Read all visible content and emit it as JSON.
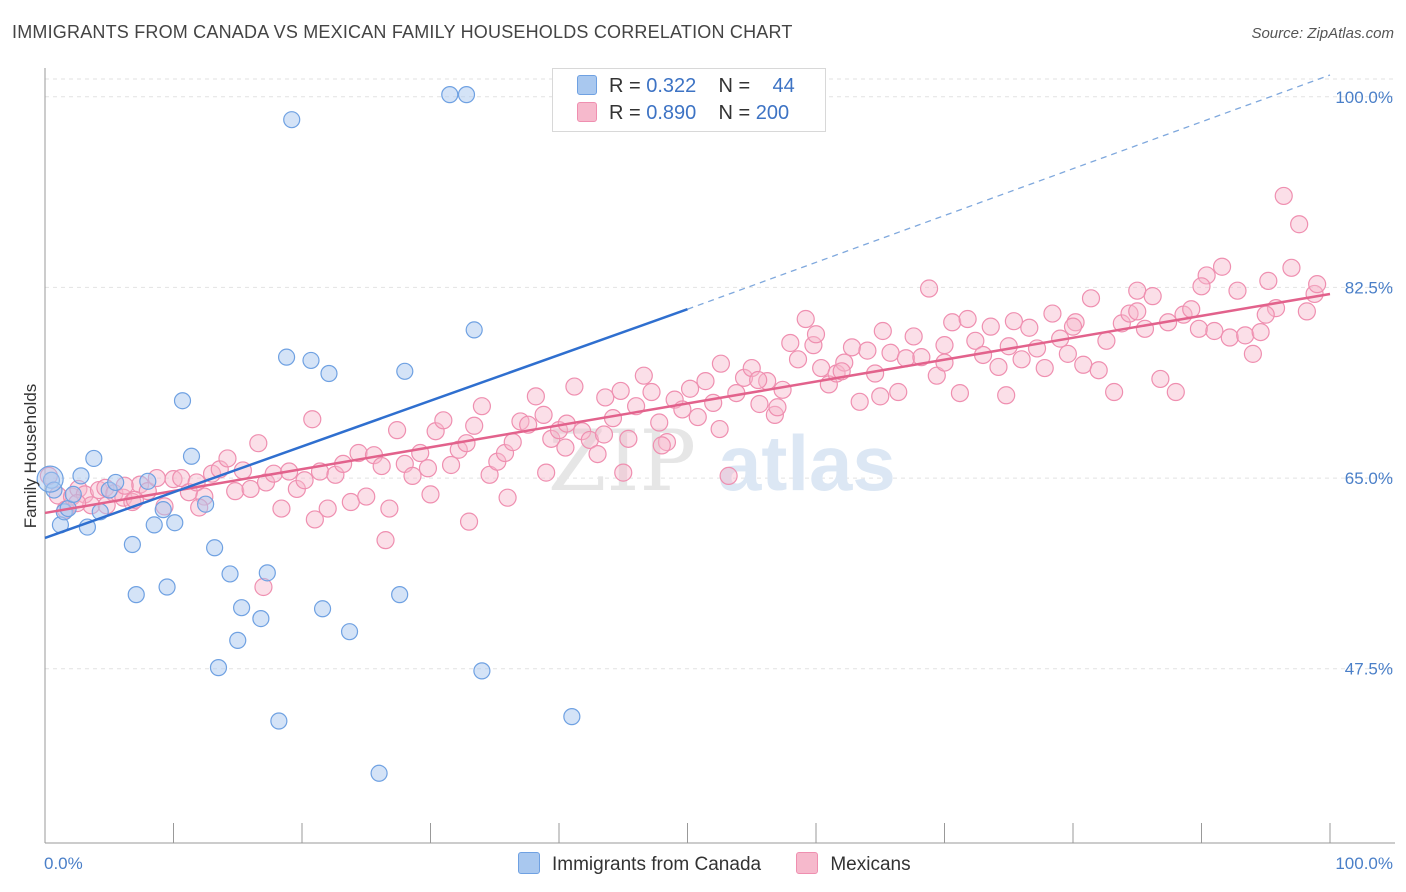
{
  "header": {
    "title": "IMMIGRANTS FROM CANADA VS MEXICAN FAMILY HOUSEHOLDS CORRELATION CHART",
    "source": "Source: ZipAtlas.com"
  },
  "watermark": {
    "zip": "ZIP",
    "atlas": "atlas"
  },
  "legend": {
    "rows": [
      {
        "r_label": "R =",
        "r_value": "0.322",
        "n_label": "N =",
        "n_value": "44",
        "color": "#a9c8ef"
      },
      {
        "r_label": "R =",
        "r_value": "0.890",
        "n_label": "N =",
        "n_value": "200",
        "color": "#f6b9cc"
      }
    ]
  },
  "bottom_legend": {
    "items": [
      {
        "label": "Immigrants from Canada",
        "color": "#a9c8ef"
      },
      {
        "label": "Mexicans",
        "color": "#f6b9cc"
      }
    ]
  },
  "chart_data": {
    "type": "scatter",
    "title": "IMMIGRANTS FROM CANADA VS MEXICAN FAMILY HOUSEHOLDS CORRELATION CHART",
    "xlabel": "",
    "ylabel": "Family Households",
    "xlim": [
      0,
      100
    ],
    "ylim": [
      31.5,
      102
    ],
    "x_tick_labels": [
      "0.0%",
      "100.0%"
    ],
    "y_ticks": [
      47.5,
      65.0,
      82.5,
      100.0
    ],
    "y_tick_labels": [
      "47.5%",
      "65.0%",
      "82.5%",
      "100.0%"
    ],
    "grid": true,
    "legend_position": "top-center",
    "colors": {
      "canada": "#6fa1e2",
      "mexicans": "#ef8fb0",
      "canada_line": "#2f6fcf",
      "mexicans_line": "#e2628c"
    },
    "series": [
      {
        "name": "Immigrants from Canada",
        "r": 0.322,
        "n": 44,
        "trend": {
          "x": [
            0,
            50
          ],
          "y": [
            59.5,
            80.5
          ],
          "dashed_to": [
            100,
            102
          ]
        },
        "points": [
          [
            0.5,
            64.8
          ],
          [
            0.7,
            63.9
          ],
          [
            1.2,
            60.7
          ],
          [
            1.5,
            61.9
          ],
          [
            1.8,
            62.2
          ],
          [
            2.2,
            63.5
          ],
          [
            2.8,
            65.2
          ],
          [
            3.3,
            60.5
          ],
          [
            3.8,
            66.8
          ],
          [
            4.3,
            61.9
          ],
          [
            5.0,
            63.9
          ],
          [
            5.5,
            64.6
          ],
          [
            6.8,
            58.9
          ],
          [
            7.1,
            54.3
          ],
          [
            8.5,
            60.7
          ],
          [
            9.2,
            62.1
          ],
          [
            10.1,
            60.9
          ],
          [
            10.7,
            72.1
          ],
          [
            11.4,
            67.0
          ],
          [
            13.2,
            58.6
          ],
          [
            13.5,
            47.6
          ],
          [
            14.4,
            56.2
          ],
          [
            15.0,
            50.1
          ],
          [
            15.3,
            53.1
          ],
          [
            16.8,
            52.1
          ],
          [
            17.3,
            56.3
          ],
          [
            18.2,
            42.7
          ],
          [
            18.8,
            76.1
          ],
          [
            19.2,
            97.9
          ],
          [
            20.7,
            75.8
          ],
          [
            21.6,
            53.0
          ],
          [
            22.1,
            74.6
          ],
          [
            23.7,
            50.9
          ],
          [
            26.0,
            37.9
          ],
          [
            27.6,
            54.3
          ],
          [
            28.0,
            74.8
          ],
          [
            31.5,
            100.2
          ],
          [
            32.8,
            100.2
          ],
          [
            33.4,
            78.6
          ],
          [
            34.0,
            47.3
          ],
          [
            41.0,
            43.1
          ],
          [
            12.5,
            62.6
          ],
          [
            9.5,
            55.0
          ],
          [
            8.0,
            64.7
          ]
        ]
      },
      {
        "name": "Mexicans",
        "r": 0.89,
        "n": 200,
        "trend": {
          "x": [
            0,
            100
          ],
          "y": [
            61.8,
            81.9
          ]
        },
        "points": [
          [
            0.3,
            65.2
          ],
          [
            1.0,
            63.4
          ],
          [
            1.6,
            62.1
          ],
          [
            2.1,
            63.3
          ],
          [
            2.6,
            64.0
          ],
          [
            3.1,
            63.5
          ],
          [
            3.6,
            62.5
          ],
          [
            4.2,
            63.9
          ],
          [
            4.7,
            64.1
          ],
          [
            5.4,
            63.6
          ],
          [
            6.1,
            63.2
          ],
          [
            6.8,
            62.8
          ],
          [
            7.4,
            64.4
          ],
          [
            8.0,
            63.8
          ],
          [
            8.7,
            65.0
          ],
          [
            9.3,
            62.4
          ],
          [
            10.0,
            64.9
          ],
          [
            10.6,
            65.0
          ],
          [
            11.2,
            63.7
          ],
          [
            11.8,
            64.6
          ],
          [
            12.4,
            63.3
          ],
          [
            13.0,
            65.4
          ],
          [
            13.6,
            65.8
          ],
          [
            14.2,
            66.8
          ],
          [
            14.8,
            63.8
          ],
          [
            15.4,
            65.7
          ],
          [
            16.0,
            64.0
          ],
          [
            16.6,
            68.2
          ],
          [
            17.2,
            64.6
          ],
          [
            17.8,
            65.4
          ],
          [
            18.4,
            62.2
          ],
          [
            19.0,
            65.6
          ],
          [
            19.6,
            64.0
          ],
          [
            20.2,
            64.8
          ],
          [
            20.8,
            70.4
          ],
          [
            21.4,
            65.6
          ],
          [
            22.0,
            62.2
          ],
          [
            22.6,
            65.3
          ],
          [
            23.2,
            66.3
          ],
          [
            23.8,
            62.8
          ],
          [
            24.4,
            67.3
          ],
          [
            25.0,
            63.3
          ],
          [
            25.6,
            67.1
          ],
          [
            26.2,
            66.1
          ],
          [
            26.8,
            62.2
          ],
          [
            27.4,
            69.4
          ],
          [
            28.0,
            66.3
          ],
          [
            28.6,
            65.2
          ],
          [
            29.2,
            67.3
          ],
          [
            29.8,
            65.9
          ],
          [
            30.4,
            69.3
          ],
          [
            31.0,
            70.3
          ],
          [
            31.6,
            66.2
          ],
          [
            32.2,
            67.6
          ],
          [
            32.8,
            68.2
          ],
          [
            33.4,
            69.8
          ],
          [
            34.0,
            71.6
          ],
          [
            34.6,
            65.3
          ],
          [
            35.2,
            66.5
          ],
          [
            35.8,
            67.3
          ],
          [
            36.4,
            68.3
          ],
          [
            37.0,
            70.2
          ],
          [
            37.6,
            69.9
          ],
          [
            38.2,
            72.5
          ],
          [
            38.8,
            70.8
          ],
          [
            39.4,
            68.6
          ],
          [
            40.0,
            69.4
          ],
          [
            40.6,
            70.0
          ],
          [
            41.2,
            73.4
          ],
          [
            41.8,
            69.3
          ],
          [
            42.4,
            68.5
          ],
          [
            43.0,
            67.2
          ],
          [
            43.6,
            72.4
          ],
          [
            44.2,
            70.5
          ],
          [
            44.8,
            73.0
          ],
          [
            45.4,
            68.6
          ],
          [
            46.0,
            71.6
          ],
          [
            46.6,
            74.4
          ],
          [
            47.2,
            72.9
          ],
          [
            47.8,
            70.1
          ],
          [
            48.4,
            68.3
          ],
          [
            49.0,
            72.2
          ],
          [
            49.6,
            71.3
          ],
          [
            50.2,
            73.2
          ],
          [
            50.8,
            70.6
          ],
          [
            51.4,
            73.9
          ],
          [
            52.0,
            71.9
          ],
          [
            52.6,
            75.5
          ],
          [
            53.2,
            65.2
          ],
          [
            53.8,
            72.8
          ],
          [
            54.4,
            74.2
          ],
          [
            55.0,
            75.1
          ],
          [
            55.6,
            71.8
          ],
          [
            56.2,
            73.9
          ],
          [
            56.8,
            70.8
          ],
          [
            57.4,
            73.1
          ],
          [
            58.0,
            77.4
          ],
          [
            58.6,
            75.9
          ],
          [
            59.2,
            79.6
          ],
          [
            59.8,
            77.2
          ],
          [
            60.4,
            75.1
          ],
          [
            61.0,
            73.6
          ],
          [
            61.6,
            74.6
          ],
          [
            62.2,
            75.6
          ],
          [
            62.8,
            77.0
          ],
          [
            63.4,
            72.0
          ],
          [
            64.0,
            76.7
          ],
          [
            64.6,
            74.6
          ],
          [
            65.2,
            78.5
          ],
          [
            65.8,
            76.5
          ],
          [
            66.4,
            72.9
          ],
          [
            67.0,
            76.0
          ],
          [
            67.6,
            78.0
          ],
          [
            68.2,
            76.1
          ],
          [
            68.8,
            82.4
          ],
          [
            69.4,
            74.4
          ],
          [
            70.0,
            77.2
          ],
          [
            70.6,
            79.3
          ],
          [
            71.2,
            72.8
          ],
          [
            71.8,
            79.6
          ],
          [
            72.4,
            77.6
          ],
          [
            73.0,
            76.3
          ],
          [
            73.6,
            78.9
          ],
          [
            74.2,
            75.2
          ],
          [
            74.8,
            72.6
          ],
          [
            75.4,
            79.4
          ],
          [
            76.0,
            75.9
          ],
          [
            76.6,
            78.8
          ],
          [
            77.2,
            76.9
          ],
          [
            77.8,
            75.1
          ],
          [
            78.4,
            80.1
          ],
          [
            79.0,
            77.8
          ],
          [
            79.6,
            76.4
          ],
          [
            80.2,
            79.3
          ],
          [
            80.8,
            75.4
          ],
          [
            81.4,
            81.5
          ],
          [
            82.0,
            74.9
          ],
          [
            82.6,
            77.6
          ],
          [
            83.2,
            72.9
          ],
          [
            83.8,
            79.2
          ],
          [
            84.4,
            80.1
          ],
          [
            85.0,
            82.2
          ],
          [
            85.6,
            78.7
          ],
          [
            86.2,
            81.7
          ],
          [
            86.8,
            74.1
          ],
          [
            87.4,
            79.3
          ],
          [
            88.0,
            72.9
          ],
          [
            88.6,
            80.0
          ],
          [
            89.2,
            80.5
          ],
          [
            89.8,
            78.7
          ],
          [
            90.4,
            83.6
          ],
          [
            91.0,
            78.5
          ],
          [
            91.6,
            84.4
          ],
          [
            92.2,
            77.9
          ],
          [
            92.8,
            82.2
          ],
          [
            93.4,
            78.1
          ],
          [
            94.0,
            76.4
          ],
          [
            94.6,
            78.4
          ],
          [
            95.2,
            83.1
          ],
          [
            95.8,
            80.6
          ],
          [
            96.4,
            90.9
          ],
          [
            97.0,
            84.3
          ],
          [
            97.6,
            88.3
          ],
          [
            98.2,
            80.3
          ],
          [
            98.8,
            81.9
          ],
          [
            45.0,
            65.5
          ],
          [
            40.5,
            67.8
          ],
          [
            36.0,
            63.2
          ],
          [
            30.0,
            63.5
          ],
          [
            26.5,
            59.3
          ],
          [
            21.0,
            61.2
          ],
          [
            17.0,
            55.0
          ],
          [
            12.0,
            62.3
          ],
          [
            7.0,
            63.0
          ],
          [
            55.5,
            74.0
          ],
          [
            60.0,
            78.2
          ],
          [
            65.0,
            72.5
          ],
          [
            70.0,
            75.6
          ],
          [
            75.0,
            77.1
          ],
          [
            80.0,
            78.9
          ],
          [
            85.0,
            80.3
          ],
          [
            90.0,
            82.6
          ],
          [
            95.0,
            80.0
          ],
          [
            99.0,
            82.8
          ],
          [
            2.5,
            62.7
          ],
          [
            4.8,
            62.5
          ],
          [
            6.2,
            64.3
          ],
          [
            33.0,
            61.0
          ],
          [
            39.0,
            65.5
          ],
          [
            43.5,
            69.0
          ],
          [
            48.0,
            68.0
          ],
          [
            52.5,
            69.5
          ],
          [
            57.0,
            71.5
          ],
          [
            62.0,
            74.8
          ]
        ]
      }
    ]
  }
}
